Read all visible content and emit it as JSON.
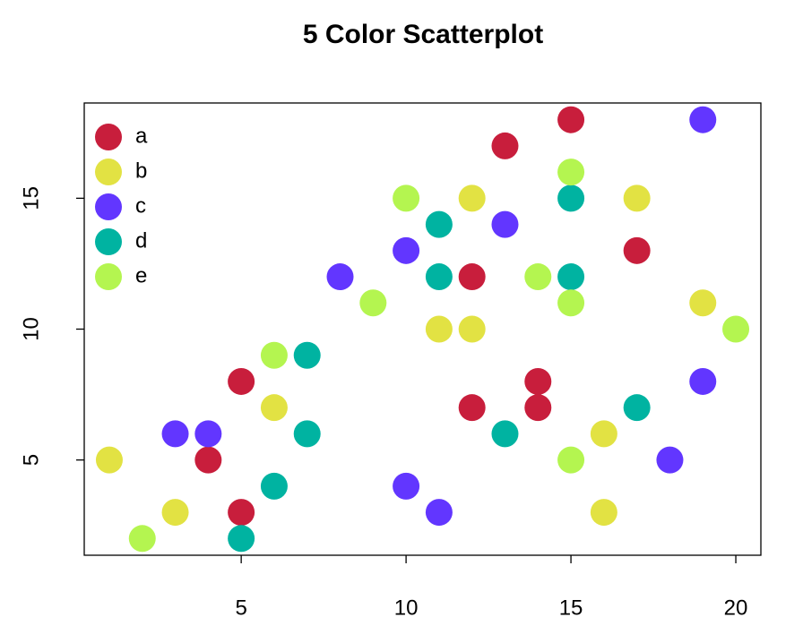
{
  "chart_data": {
    "type": "scatter",
    "title": "5 Color Scatterplot",
    "xlim": [
      0.24,
      20.76
    ],
    "ylim": [
      1.36,
      18.64
    ],
    "xticks": [
      5,
      10,
      15,
      20
    ],
    "yticks": [
      5,
      10,
      15
    ],
    "grid": false,
    "legend": "top-left",
    "series": [
      {
        "name": "a",
        "color": "#C81E3C",
        "x": [
          15,
          13,
          17,
          12,
          5,
          14,
          12,
          14,
          4,
          5
        ],
        "y": [
          18,
          17,
          13,
          12,
          8,
          8,
          7,
          7,
          5,
          3
        ]
      },
      {
        "name": "b",
        "color": "#E2E243",
        "x": [
          1,
          3,
          6,
          11,
          12,
          12,
          17,
          19,
          16,
          16
        ],
        "y": [
          5,
          3,
          7,
          10,
          10,
          15,
          15,
          11,
          6,
          3
        ]
      },
      {
        "name": "c",
        "color": "#6236FF",
        "x": [
          19,
          13,
          10,
          8,
          3,
          4,
          10,
          11,
          18,
          19
        ],
        "y": [
          18,
          14,
          13,
          12,
          6,
          6,
          4,
          3,
          5,
          8
        ]
      },
      {
        "name": "d",
        "color": "#00B3A1",
        "x": [
          11,
          11,
          15,
          15,
          7,
          7,
          13,
          17,
          6,
          5
        ],
        "y": [
          14,
          12,
          15,
          12,
          9,
          6,
          6,
          7,
          4,
          2
        ]
      },
      {
        "name": "e",
        "color": "#B4F550",
        "x": [
          10,
          15,
          14,
          15,
          9,
          6,
          2,
          15,
          20
        ],
        "y": [
          15,
          16,
          12,
          11,
          11,
          9,
          2,
          5,
          10
        ]
      }
    ]
  }
}
